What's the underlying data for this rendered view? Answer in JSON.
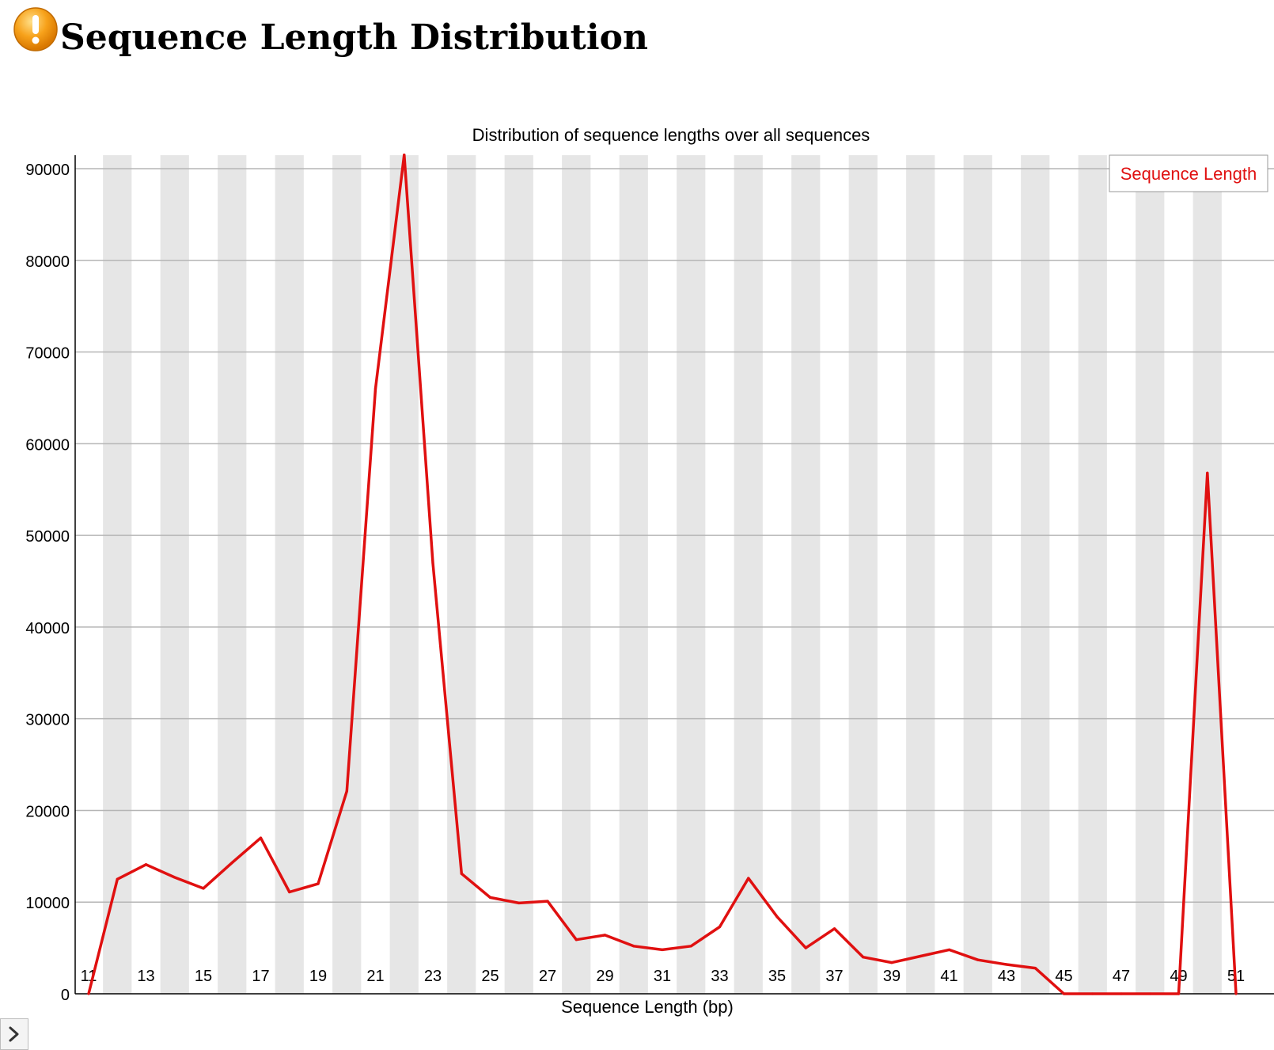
{
  "page": {
    "title": "Sequence Length Distribution",
    "status_icon": "warning-icon",
    "status_color": "#f39c12"
  },
  "collapse_toggle": {
    "icon": "chevron-right-icon"
  },
  "chart_data": {
    "type": "line",
    "title": "Distribution of sequence lengths over all sequences",
    "xlabel": "Sequence Length (bp)",
    "ylabel": "",
    "x": [
      11,
      12,
      13,
      14,
      15,
      16,
      17,
      18,
      19,
      20,
      21,
      22,
      23,
      24,
      25,
      26,
      27,
      28,
      29,
      30,
      31,
      32,
      33,
      34,
      35,
      36,
      37,
      38,
      39,
      40,
      41,
      42,
      43,
      44,
      45,
      46,
      47,
      48,
      49,
      50,
      51
    ],
    "x_tick_labels": [
      "11",
      "13",
      "15",
      "17",
      "19",
      "21",
      "23",
      "25",
      "27",
      "29",
      "31",
      "33",
      "35",
      "37",
      "39",
      "41",
      "43",
      "45",
      "47",
      "49",
      "51"
    ],
    "y_tick_labels": [
      "0",
      "10000",
      "20000",
      "30000",
      "40000",
      "50000",
      "60000",
      "70000",
      "80000",
      "90000"
    ],
    "ylim": [
      0,
      91000
    ],
    "grid": true,
    "alternating_column_shading": true,
    "legend_position": "top-right",
    "series": [
      {
        "name": "Sequence Length",
        "color": "#e01010",
        "values": [
          0,
          12500,
          14100,
          12700,
          11500,
          14300,
          17000,
          11100,
          12000,
          22100,
          66000,
          91500,
          47000,
          13100,
          10500,
          9900,
          10100,
          5900,
          6400,
          5200,
          4800,
          5200,
          7300,
          12600,
          8400,
          5000,
          7100,
          4000,
          3400,
          4100,
          4800,
          3700,
          3200,
          2800,
          0,
          0,
          0,
          0,
          0,
          56800,
          0
        ]
      }
    ]
  }
}
